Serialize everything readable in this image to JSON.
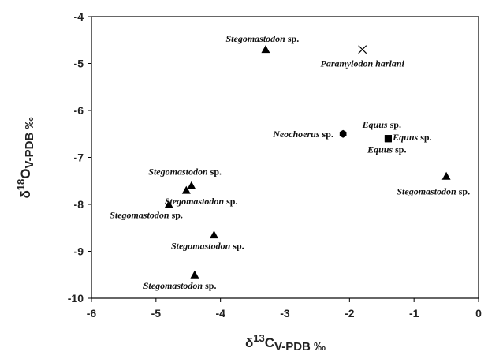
{
  "chart_data": {
    "type": "scatter",
    "title": "",
    "xlabel": {
      "delta": "δ",
      "sup": "13",
      "main": "C",
      "sub": "V-PDB ‰"
    },
    "ylabel": {
      "delta": "δ",
      "sup": "18",
      "main": "O",
      "sub": "V-PDB ‰"
    },
    "xlim": [
      -6,
      0
    ],
    "ylim": [
      -10,
      -4
    ],
    "x_ticks": [
      -6,
      -5,
      -4,
      -3,
      -2,
      -1,
      0
    ],
    "y_ticks": [
      -10,
      -9,
      -8,
      -7,
      -6,
      -5,
      -4
    ],
    "points": [
      {
        "taxon": "Stegomastodon",
        "x": -3.3,
        "y": -4.7,
        "marker": "triangle"
      },
      {
        "taxon": "Paramylodon harlani",
        "x": -1.8,
        "y": -4.7,
        "marker": "cross"
      },
      {
        "taxon": "Neochoerus",
        "x": -2.1,
        "y": -6.5,
        "marker": "hexagon"
      },
      {
        "taxon": "Equus",
        "x": -1.4,
        "y": -6.6,
        "marker": "square"
      },
      {
        "taxon": "Equus",
        "x": -1.4,
        "y": -6.6,
        "marker": "square"
      },
      {
        "taxon": "Equus",
        "x": -1.4,
        "y": -6.6,
        "marker": "square"
      },
      {
        "taxon": "Stegomastodon",
        "x": -0.5,
        "y": -7.4,
        "marker": "triangle"
      },
      {
        "taxon": "Stegomastodon",
        "x": -4.45,
        "y": -7.6,
        "marker": "triangle"
      },
      {
        "taxon": "Stegomastodon",
        "x": -4.53,
        "y": -7.7,
        "marker": "triangle"
      },
      {
        "taxon": "Stegomastodon",
        "x": -4.8,
        "y": -8.0,
        "marker": "triangle"
      },
      {
        "taxon": "Stegomastodon",
        "x": -4.1,
        "y": -8.65,
        "marker": "triangle"
      },
      {
        "taxon": "Stegomastodon",
        "x": -4.4,
        "y": -9.5,
        "marker": "triangle"
      }
    ],
    "labels": [
      {
        "genus": "Stegomastodon",
        "suffix": " sp.",
        "x": -3.35,
        "y": -4.47,
        "anchor": "middle"
      },
      {
        "genus": "Paramylodon harlani",
        "suffix": "",
        "x": -1.8,
        "y": -5.0,
        "anchor": "middle"
      },
      {
        "genus": "Neochoerus",
        "suffix": " sp.",
        "x": -2.25,
        "y": -6.5,
        "anchor": "end"
      },
      {
        "genus": "Equus",
        "suffix": " sp.",
        "x": -1.5,
        "y": -6.3,
        "anchor": "middle"
      },
      {
        "genus": "Equus",
        "suffix": " sp.",
        "x": -1.33,
        "y": -6.57,
        "anchor": "start"
      },
      {
        "genus": "Equus",
        "suffix": " sp.",
        "x": -1.42,
        "y": -6.83,
        "anchor": "middle"
      },
      {
        "genus": "Stegomastodon",
        "suffix": " sp.",
        "x": -0.7,
        "y": -7.72,
        "anchor": "middle"
      },
      {
        "genus": "Stegomastodon",
        "suffix": " sp.",
        "x": -4.55,
        "y": -7.3,
        "anchor": "middle"
      },
      {
        "genus": "Stegomastodon",
        "suffix": " sp.",
        "x": -4.3,
        "y": -7.93,
        "anchor": "middle"
      },
      {
        "genus": "Stegomastodon",
        "suffix": " sp.",
        "x": -5.15,
        "y": -8.23,
        "anchor": "middle"
      },
      {
        "genus": "Stegomastodon",
        "suffix": " sp.",
        "x": -4.2,
        "y": -8.88,
        "anchor": "middle"
      },
      {
        "genus": "Stegomastodon",
        "suffix": " sp.",
        "x": -4.63,
        "y": -9.73,
        "anchor": "middle"
      }
    ]
  }
}
